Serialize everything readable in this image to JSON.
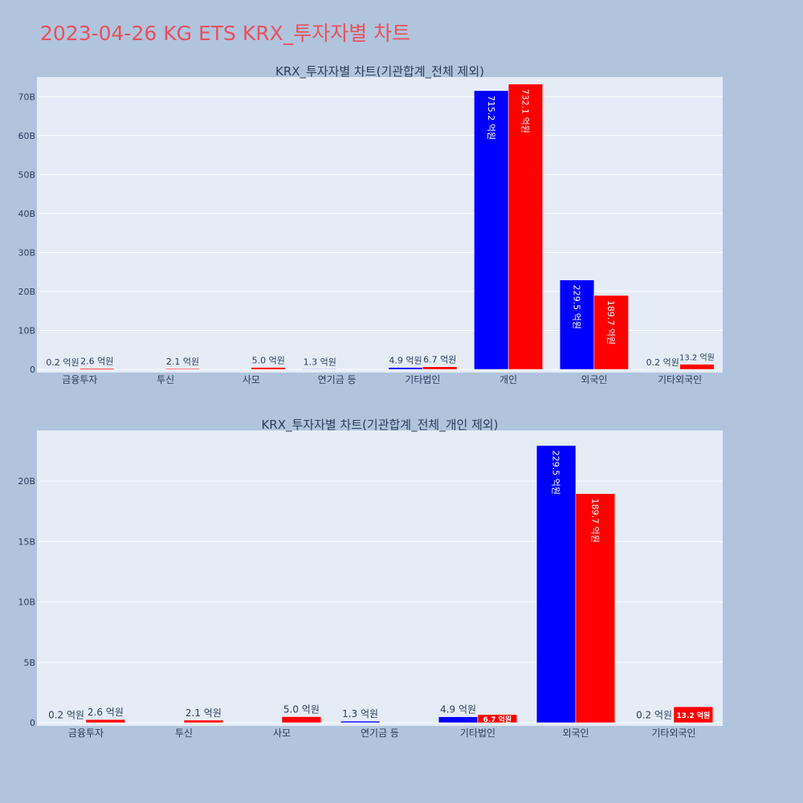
{
  "page": {
    "title": "2023-04-26 KG ETS KRX_투자자별 차트"
  },
  "colors": {
    "background": "#b0c4de",
    "plot_bg": "#e5ecf6",
    "title": "#e8505b",
    "buy": "#0000ff",
    "sell": "#ff0000",
    "text": "#2a3f5f",
    "grid": "#ffffff"
  },
  "chart_data": [
    {
      "type": "bar",
      "title": "KRX_투자자별 차트(기관합계_전체 제외)",
      "categories": [
        "금융투자",
        "투신",
        "사모",
        "연기금 등",
        "기타법인",
        "개인",
        "외국인",
        "기타외국인"
      ],
      "ylim": [
        0,
        75
      ],
      "yticks": [
        0,
        10,
        20,
        30,
        40,
        50,
        60,
        70
      ],
      "ytick_labels": [
        "0",
        "10B",
        "20B",
        "30B",
        "40B",
        "50B",
        "60B",
        "70B"
      ],
      "grid": true,
      "series": [
        {
          "color": "#0000ff",
          "values": [
            0.02,
            0,
            0,
            0.13,
            0.49,
            71.52,
            22.95,
            0.02
          ],
          "labels": [
            "0.2 억원",
            "",
            "",
            "1.3 억원",
            "4.9 억원",
            "715.2 억원",
            "229.5 억원",
            "0.2 억원"
          ]
        },
        {
          "color": "#ff0000",
          "values": [
            0.26,
            0.21,
            0.5,
            0,
            0.67,
            73.21,
            18.97,
            1.32
          ],
          "labels": [
            "2.6 억원",
            "2.1 억원",
            "5.0 억원",
            "",
            "6.7 억원",
            "732.1 억원",
            "189.7 억원",
            "13.2 억원"
          ]
        }
      ]
    },
    {
      "type": "bar",
      "title": "KRX_투자자별 차트(기관합계_전체_개인 제외)",
      "categories": [
        "금융투자",
        "투신",
        "사모",
        "연기금 등",
        "기타법인",
        "외국인",
        "기타외국인"
      ],
      "ylim": [
        0,
        24.2
      ],
      "yticks": [
        0,
        5,
        10,
        15,
        20
      ],
      "ytick_labels": [
        "0",
        "5B",
        "10B",
        "15B",
        "20B"
      ],
      "grid": true,
      "series": [
        {
          "color": "#0000ff",
          "values": [
            0.02,
            0,
            0,
            0.13,
            0.49,
            22.95,
            0.02
          ],
          "labels": [
            "0.2 억원",
            "",
            "",
            "1.3 억원",
            "4.9 억원",
            "229.5 억원",
            "0.2 억원"
          ]
        },
        {
          "color": "#ff0000",
          "values": [
            0.26,
            0.21,
            0.5,
            0,
            0.67,
            18.97,
            1.32
          ],
          "labels": [
            "2.6 억원",
            "2.1 억원",
            "5.0 억원",
            "",
            "6.7 억원",
            "189.7 억원",
            "13.2 억원"
          ]
        }
      ]
    }
  ]
}
